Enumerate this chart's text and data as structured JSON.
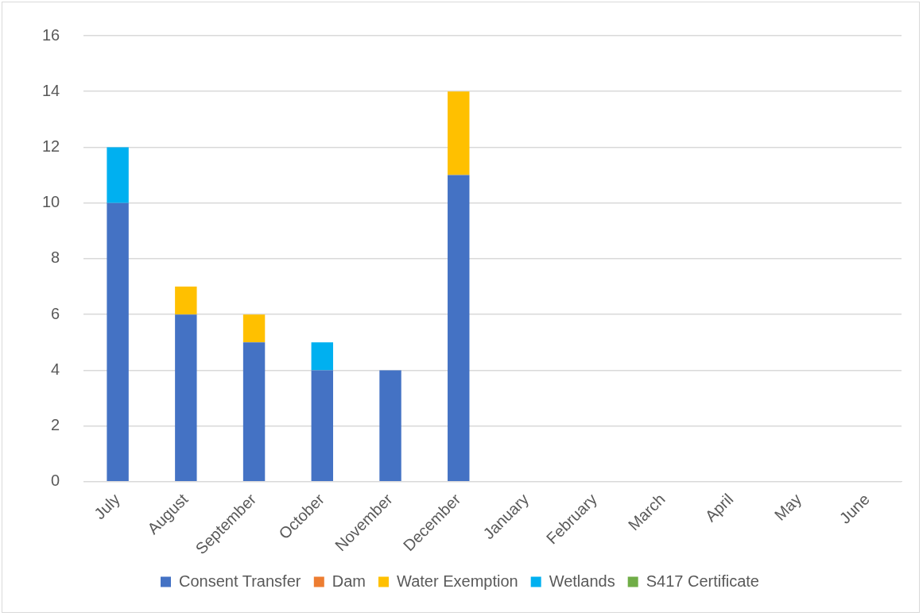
{
  "chart_data": {
    "type": "bar",
    "stacked": true,
    "categories": [
      "July",
      "August",
      "September",
      "October",
      "November",
      "December",
      "January",
      "February",
      "March",
      "April",
      "May",
      "June"
    ],
    "series": [
      {
        "name": "Consent Transfer",
        "color": "#4472c4",
        "values": [
          10,
          6,
          5,
          4,
          4,
          11,
          null,
          null,
          null,
          null,
          null,
          null
        ]
      },
      {
        "name": "Dam",
        "color": "#ed7d31",
        "values": [
          0,
          0,
          0,
          0,
          0,
          0,
          null,
          null,
          null,
          null,
          null,
          null
        ]
      },
      {
        "name": "Water Exemption",
        "color": "#ffc000",
        "values": [
          0,
          1,
          1,
          0,
          0,
          3,
          null,
          null,
          null,
          null,
          null,
          null
        ]
      },
      {
        "name": "Wetlands",
        "color": "#00b0f0",
        "values": [
          2,
          0,
          0,
          1,
          0,
          0,
          null,
          null,
          null,
          null,
          null,
          null
        ]
      },
      {
        "name": "S417 Certificate",
        "color": "#70ad47",
        "values": [
          0,
          0,
          0,
          0,
          0,
          0,
          null,
          null,
          null,
          null,
          null,
          null
        ]
      }
    ],
    "ylim": [
      0,
      16
    ],
    "yticks": [
      0,
      2,
      4,
      6,
      8,
      10,
      12,
      14,
      16
    ],
    "grid": "y",
    "legend": "bottom"
  }
}
